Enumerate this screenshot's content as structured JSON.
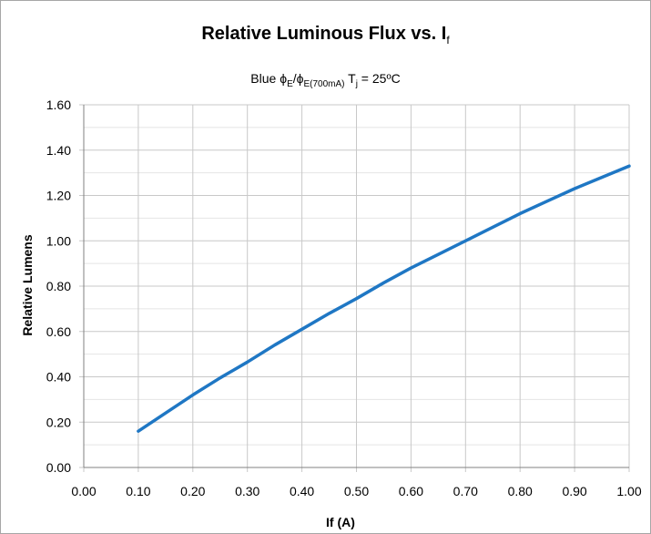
{
  "chart_data": {
    "type": "line",
    "title": "Relative Luminous Flux  vs. I",
    "title_subscript": "f",
    "subtitle_parts": {
      "p1": "Blue ",
      "phi1": "ϕ",
      "sub1": "E",
      "slash": "/",
      "phi2": "ϕ",
      "sub2": "E(700mA)",
      "mid": "  T",
      "sub3": "j",
      "end": " = 25ºC"
    },
    "xlabel": "If (A)",
    "ylabel": "Relative Lumens",
    "xlim": [
      0,
      1.0
    ],
    "ylim": [
      0,
      1.6
    ],
    "x_ticks": [
      "0.00",
      "0.10",
      "0.20",
      "0.30",
      "0.40",
      "0.50",
      "0.60",
      "0.70",
      "0.80",
      "0.90",
      "1.00"
    ],
    "y_ticks": [
      "0.00",
      "0.20",
      "0.40",
      "0.60",
      "0.80",
      "1.00",
      "1.20",
      "1.40",
      "1.60"
    ],
    "grid": true,
    "series": [
      {
        "color": "#1f77c4",
        "x": [
          0.1,
          0.15,
          0.2,
          0.25,
          0.3,
          0.35,
          0.4,
          0.45,
          0.5,
          0.55,
          0.6,
          0.65,
          0.7,
          0.75,
          0.8,
          0.85,
          0.9,
          0.95,
          1.0
        ],
        "y": [
          0.16,
          0.24,
          0.32,
          0.395,
          0.465,
          0.54,
          0.61,
          0.68,
          0.745,
          0.815,
          0.88,
          0.94,
          1.0,
          1.06,
          1.12,
          1.175,
          1.23,
          1.28,
          1.33
        ]
      }
    ]
  }
}
